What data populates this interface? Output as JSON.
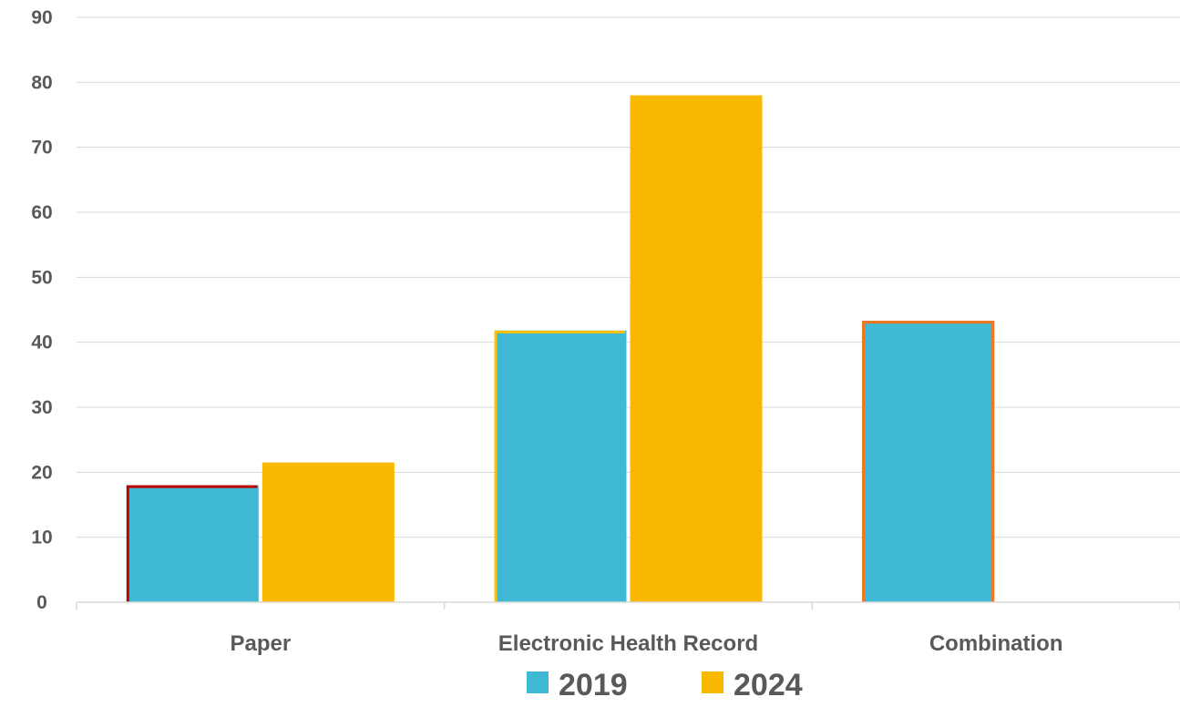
{
  "chart_data": {
    "type": "bar",
    "categories": [
      "Paper",
      "Electronic Health Record",
      "Combination"
    ],
    "series": [
      {
        "name": "2019",
        "color": "#40B9D4",
        "values": [
          18,
          41.8,
          43.3
        ],
        "outline_colors": [
          "#C00000",
          "#FFC000",
          "#F4731C"
        ]
      },
      {
        "name": "2024",
        "color": "#F9B800",
        "values": [
          21.5,
          78,
          null
        ]
      }
    ],
    "yticks": [
      "0",
      "10",
      "20",
      "30",
      "40",
      "50",
      "60",
      "70",
      "80",
      "90"
    ],
    "ylim": [
      0,
      90
    ],
    "grid": true,
    "legend": "bottom",
    "colors": {
      "grid": "#D9D9D9",
      "axis": "#D9D9D9",
      "text": "#595959"
    }
  }
}
